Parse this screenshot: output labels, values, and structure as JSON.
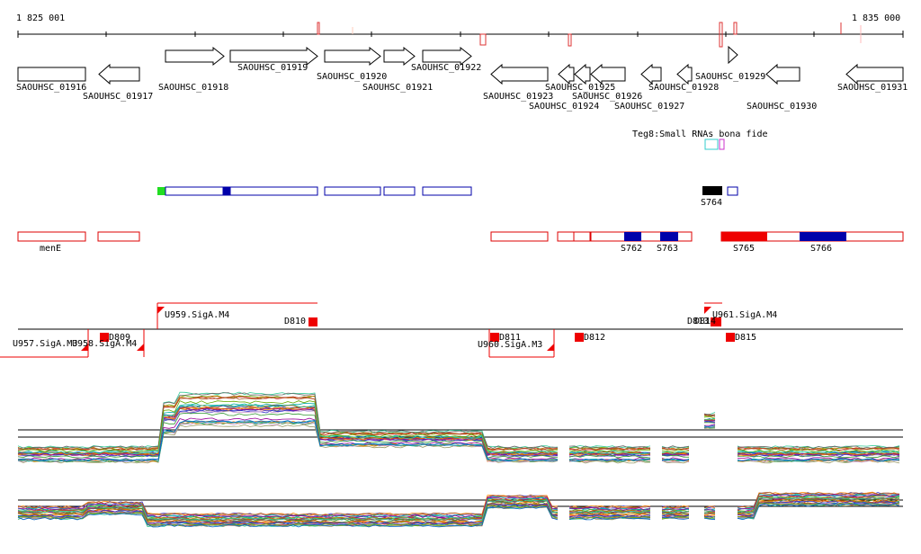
{
  "header": {
    "start": "1 825 001",
    "end": "1 835 000"
  },
  "genes": [
    "SAOUHSC_01916",
    "SAOUHSC_01917",
    "SAOUHSC_01918",
    "SAOUHSC_01919",
    "SAOUHSC_01920",
    "SAOUHSC_01921",
    "SAOUHSC_01922",
    "SAOUHSC_01923",
    "SAOUHSC_01924",
    "SAOUHSC_01925",
    "SAOUHSC_01926",
    "SAOUHSC_01927",
    "SAOUHSC_01928",
    "SAOUHSC_01929",
    "SAOUHSC_01930",
    "SAOUHSC_01931"
  ],
  "small_rna_track": "Teg8:Small RNAs bona fide",
  "features": {
    "s764": "S764",
    "mene": "menE",
    "s762": "S762",
    "s763": "S763",
    "s765": "S765",
    "s766": "S766"
  },
  "promoters": [
    "U959.SigA.M4",
    "D810",
    "U961.SigA.M4",
    "D813",
    "D814",
    "D809",
    "U957.SigA.M3",
    "U958.SigA.M4",
    "D811",
    "U960.SigA.M3",
    "D812",
    "D815"
  ]
}
